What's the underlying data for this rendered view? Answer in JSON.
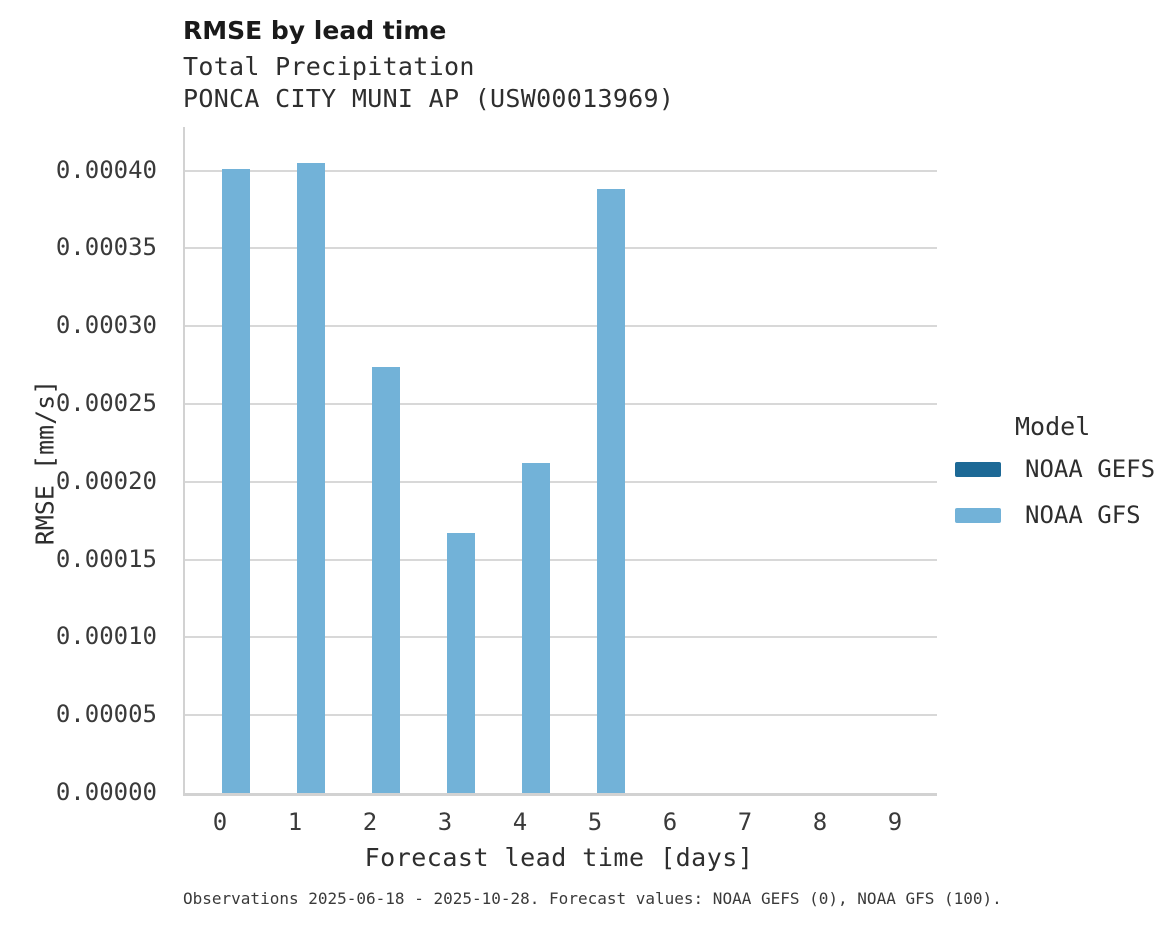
{
  "header": {
    "title": "RMSE by lead time",
    "subtitle_line1": "Total Precipitation",
    "subtitle_line2": "PONCA CITY MUNI AP (USW00013969)"
  },
  "chart_data": {
    "type": "bar",
    "title": "RMSE by lead time",
    "subtitle": [
      "Total Precipitation",
      "PONCA CITY MUNI AP (USW00013969)"
    ],
    "categories": [
      "0",
      "1",
      "2",
      "3",
      "4",
      "5",
      "6",
      "7",
      "8",
      "9"
    ],
    "series": [
      {
        "name": "NOAA GEFS",
        "color": "#1d6996",
        "values": [
          0,
          0,
          0,
          0,
          0,
          0,
          0,
          0,
          0,
          0
        ]
      },
      {
        "name": "NOAA GFS",
        "color": "#72b2d8",
        "values": [
          0.000401,
          0.000405,
          0.000274,
          0.000167,
          0.000212,
          0.000388,
          0,
          0,
          0,
          0
        ]
      }
    ],
    "xlabel": "Forecast lead time [days]",
    "ylabel": "RMSE [mm/s]",
    "ylim": [
      0,
      0.000428
    ],
    "yticks": [
      0.0,
      5e-05,
      0.0001,
      0.00015,
      0.0002,
      0.00025,
      0.0003,
      0.00035,
      0.0004
    ],
    "ytick_labels": [
      "0.00000",
      "0.00005",
      "0.00010",
      "0.00015",
      "0.00020",
      "0.00025",
      "0.00030",
      "0.00035",
      "0.00040"
    ],
    "grid": "horizontal",
    "legend_title": "Model",
    "legend_position": "right",
    "bar_orientation": "vertical",
    "dodged": true
  },
  "legend": {
    "title": "Model",
    "entries": [
      {
        "label": "NOAA GEFS",
        "color": "#1d6996"
      },
      {
        "label": "NOAA GFS",
        "color": "#72b2d8"
      }
    ]
  },
  "footer": {
    "note": "Observations 2025-06-18 - 2025-10-28. Forecast values: NOAA GEFS (0), NOAA GFS (100)."
  },
  "colors": {
    "background": "#ffffff",
    "gridline": "#d8d8d8",
    "axis_spine": "#d2d2d2",
    "title_text": "#1a1a1a",
    "body_text": "#2e2e2e",
    "tick_text": "#3a3a3a"
  }
}
